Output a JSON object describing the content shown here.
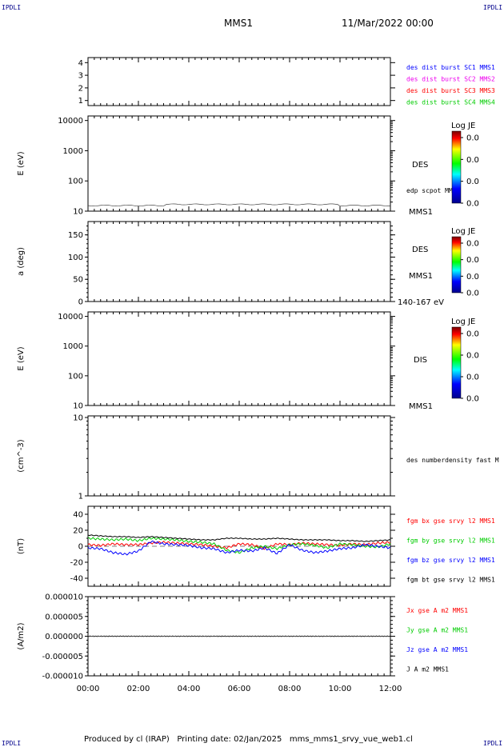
{
  "header": {
    "corner_tl": "IPDLI",
    "corner_tr": "IPDLI",
    "corner_bl": "IPDLI",
    "corner_br": "IPDLI",
    "title": "MMS1",
    "date": "11/Mar/2022 00:00"
  },
  "footer": "Produced by cl (IRAP)   Printing date: 02/Jan/2025   mms_mms1_srvy_vue_web1.cl",
  "colors": {
    "red": "#ff0000",
    "green": "#00cc00",
    "blue": "#0000ff",
    "magenta": "#ee00ee",
    "black": "#000000"
  },
  "chart_data": [
    {
      "type": "line",
      "panel": "burst",
      "yticks": [
        "4",
        "3",
        "2",
        "1"
      ],
      "ylim": [
        0.6,
        4.4
      ],
      "legend": [
        {
          "label": "des dist burst SC1 MMS1",
          "color": "#0000ff"
        },
        {
          "label": "des dist burst SC2 MMS2",
          "color": "#ee00ee"
        },
        {
          "label": "des dist burst SC3 MMS3",
          "color": "#ff0000"
        },
        {
          "label": "des dist burst SC4 MMS4",
          "color": "#00cc00"
        }
      ]
    },
    {
      "type": "heatmap",
      "panel": "des-energy",
      "ylabel": "E (eV)",
      "yscale": "log",
      "yticks": [
        "10000",
        "1000",
        "100",
        "10"
      ],
      "right_labels": [
        "DES",
        "edp scpot MMS1",
        "MMS1"
      ],
      "colorbar": {
        "title": "Log JE",
        "ticks": [
          "0.0",
          "0.0",
          "0.0",
          "0.0"
        ]
      }
    },
    {
      "type": "heatmap",
      "panel": "des-pitch",
      "ylabel": "a (deg)",
      "yticks": [
        "150",
        "100",
        "50",
        "0"
      ],
      "ylim": [
        0,
        180
      ],
      "right_labels": [
        "DES",
        "MMS1",
        "140-167 eV"
      ],
      "colorbar": {
        "title": "Log JE",
        "ticks": [
          "0.0",
          "0.0",
          "0.0",
          "0.0"
        ]
      }
    },
    {
      "type": "heatmap",
      "panel": "dis-energy",
      "ylabel": "E (eV)",
      "yscale": "log",
      "yticks": [
        "10000",
        "1000",
        "100",
        "10"
      ],
      "right_labels": [
        "DIS",
        "MMS1"
      ],
      "colorbar": {
        "title": "Log JE",
        "ticks": [
          "0.0",
          "0.0",
          "0.0",
          "0.0"
        ]
      }
    },
    {
      "type": "line",
      "panel": "density",
      "ylabel": "(cm^-3)",
      "yscale": "log",
      "yticks": [
        "10",
        "1"
      ],
      "legend": [
        {
          "label": "des numberdensity fast M",
          "color": "#000000"
        }
      ]
    },
    {
      "type": "line",
      "panel": "fgm",
      "ylabel": "(nT)",
      "yticks": [
        "40",
        "20",
        "0",
        "-20",
        "-40"
      ],
      "ylim": [
        -50,
        50
      ],
      "x_hours": [
        0,
        0.5,
        1,
        1.5,
        2,
        2.5,
        3,
        3.5,
        4,
        4.5,
        5,
        5.5,
        6,
        6.5,
        7,
        7.5,
        8,
        8.5,
        9,
        9.5,
        10,
        10.5,
        11,
        11.5,
        12
      ],
      "series": [
        {
          "name": "fgm bx gse srvy l2 MMS1",
          "color": "#ff0000",
          "values": [
            2,
            1,
            3,
            2,
            2,
            4,
            5,
            4,
            3,
            2,
            0,
            -2,
            3,
            2,
            -3,
            3,
            2,
            4,
            3,
            2,
            1,
            3,
            2,
            4,
            5
          ]
        },
        {
          "name": "fgm by gse srvy l2 MMS1",
          "color": "#00cc00",
          "values": [
            10,
            9,
            8,
            9,
            7,
            10,
            9,
            8,
            6,
            5,
            3,
            -5,
            -8,
            -2,
            0,
            -3,
            2,
            3,
            1,
            -2,
            3,
            2,
            0,
            -1,
            3
          ]
        },
        {
          "name": "fgm bz gse srvy l2 MMS1",
          "color": "#0000ff",
          "values": [
            -2,
            -3,
            -8,
            -10,
            -6,
            6,
            3,
            2,
            1,
            -2,
            -3,
            -8,
            -5,
            -6,
            -2,
            -9,
            2,
            -5,
            -8,
            -6,
            -3,
            -2,
            2,
            0,
            -2
          ]
        },
        {
          "name": "fgm bt gse srvy l2 MMS1",
          "color": "#000000",
          "values": [
            14,
            13,
            12,
            12,
            11,
            12,
            11,
            10,
            9,
            8,
            8,
            10,
            10,
            9,
            9,
            10,
            9,
            8,
            8,
            8,
            7,
            7,
            6,
            7,
            8
          ]
        }
      ]
    },
    {
      "type": "line",
      "panel": "current",
      "ylabel": "(A/m2)",
      "yticks": [
        "0.000010",
        "0.000005",
        "0.000000",
        "-0.000005",
        "-0.000010"
      ],
      "ylim": [
        -1e-05,
        1e-05
      ],
      "xticks": [
        "00:00",
        "02:00",
        "04:00",
        "06:00",
        "08:00",
        "10:00",
        "12:00"
      ],
      "series": [
        {
          "name": "Jx gse A m2 MMS1",
          "color": "#ff0000"
        },
        {
          "name": "Jy gse A m2 MMS1",
          "color": "#00cc00"
        },
        {
          "name": "Jz gse A m2 MMS1",
          "color": "#0000ff"
        },
        {
          "name": "J A m2 MMS1",
          "color": "#000000"
        }
      ]
    }
  ]
}
